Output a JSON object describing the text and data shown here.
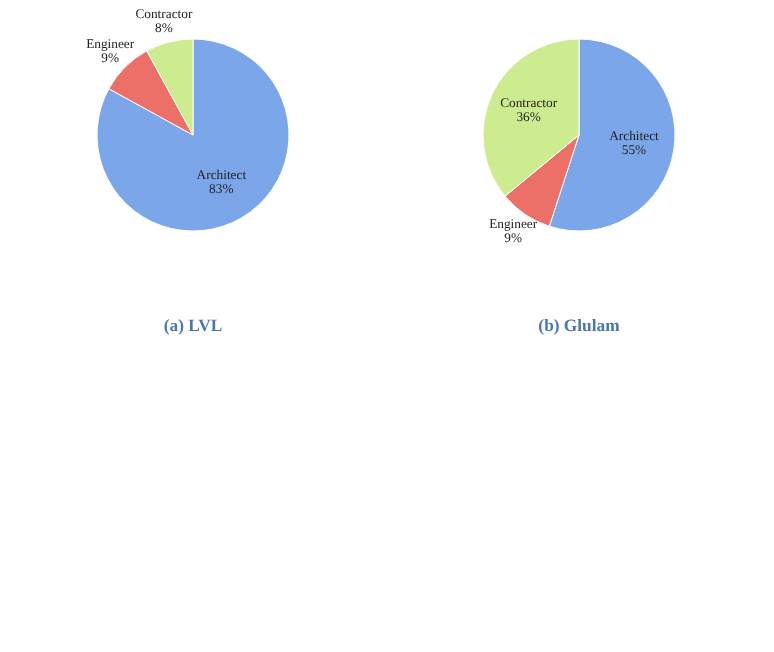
{
  "chart_data": [
    {
      "type": "pie",
      "title": "(a) LVL",
      "categories": [
        "Architect",
        "Engineer",
        "Contractor"
      ],
      "values": [
        83,
        9,
        8
      ],
      "value_labels": [
        "83%",
        "9%",
        "8%"
      ],
      "colors": [
        "#7ba7ea",
        "#ec6f68",
        "#cdeb8f"
      ]
    },
    {
      "type": "pie",
      "title": "(b) Glulam",
      "categories": [
        "Architect",
        "Engineer",
        "Contractor"
      ],
      "values": [
        55,
        9,
        36
      ],
      "value_labels": [
        "55%",
        "9%",
        "36%"
      ],
      "colors": [
        "#7ba7ea",
        "#ec6f68",
        "#cdeb8f"
      ]
    }
  ]
}
